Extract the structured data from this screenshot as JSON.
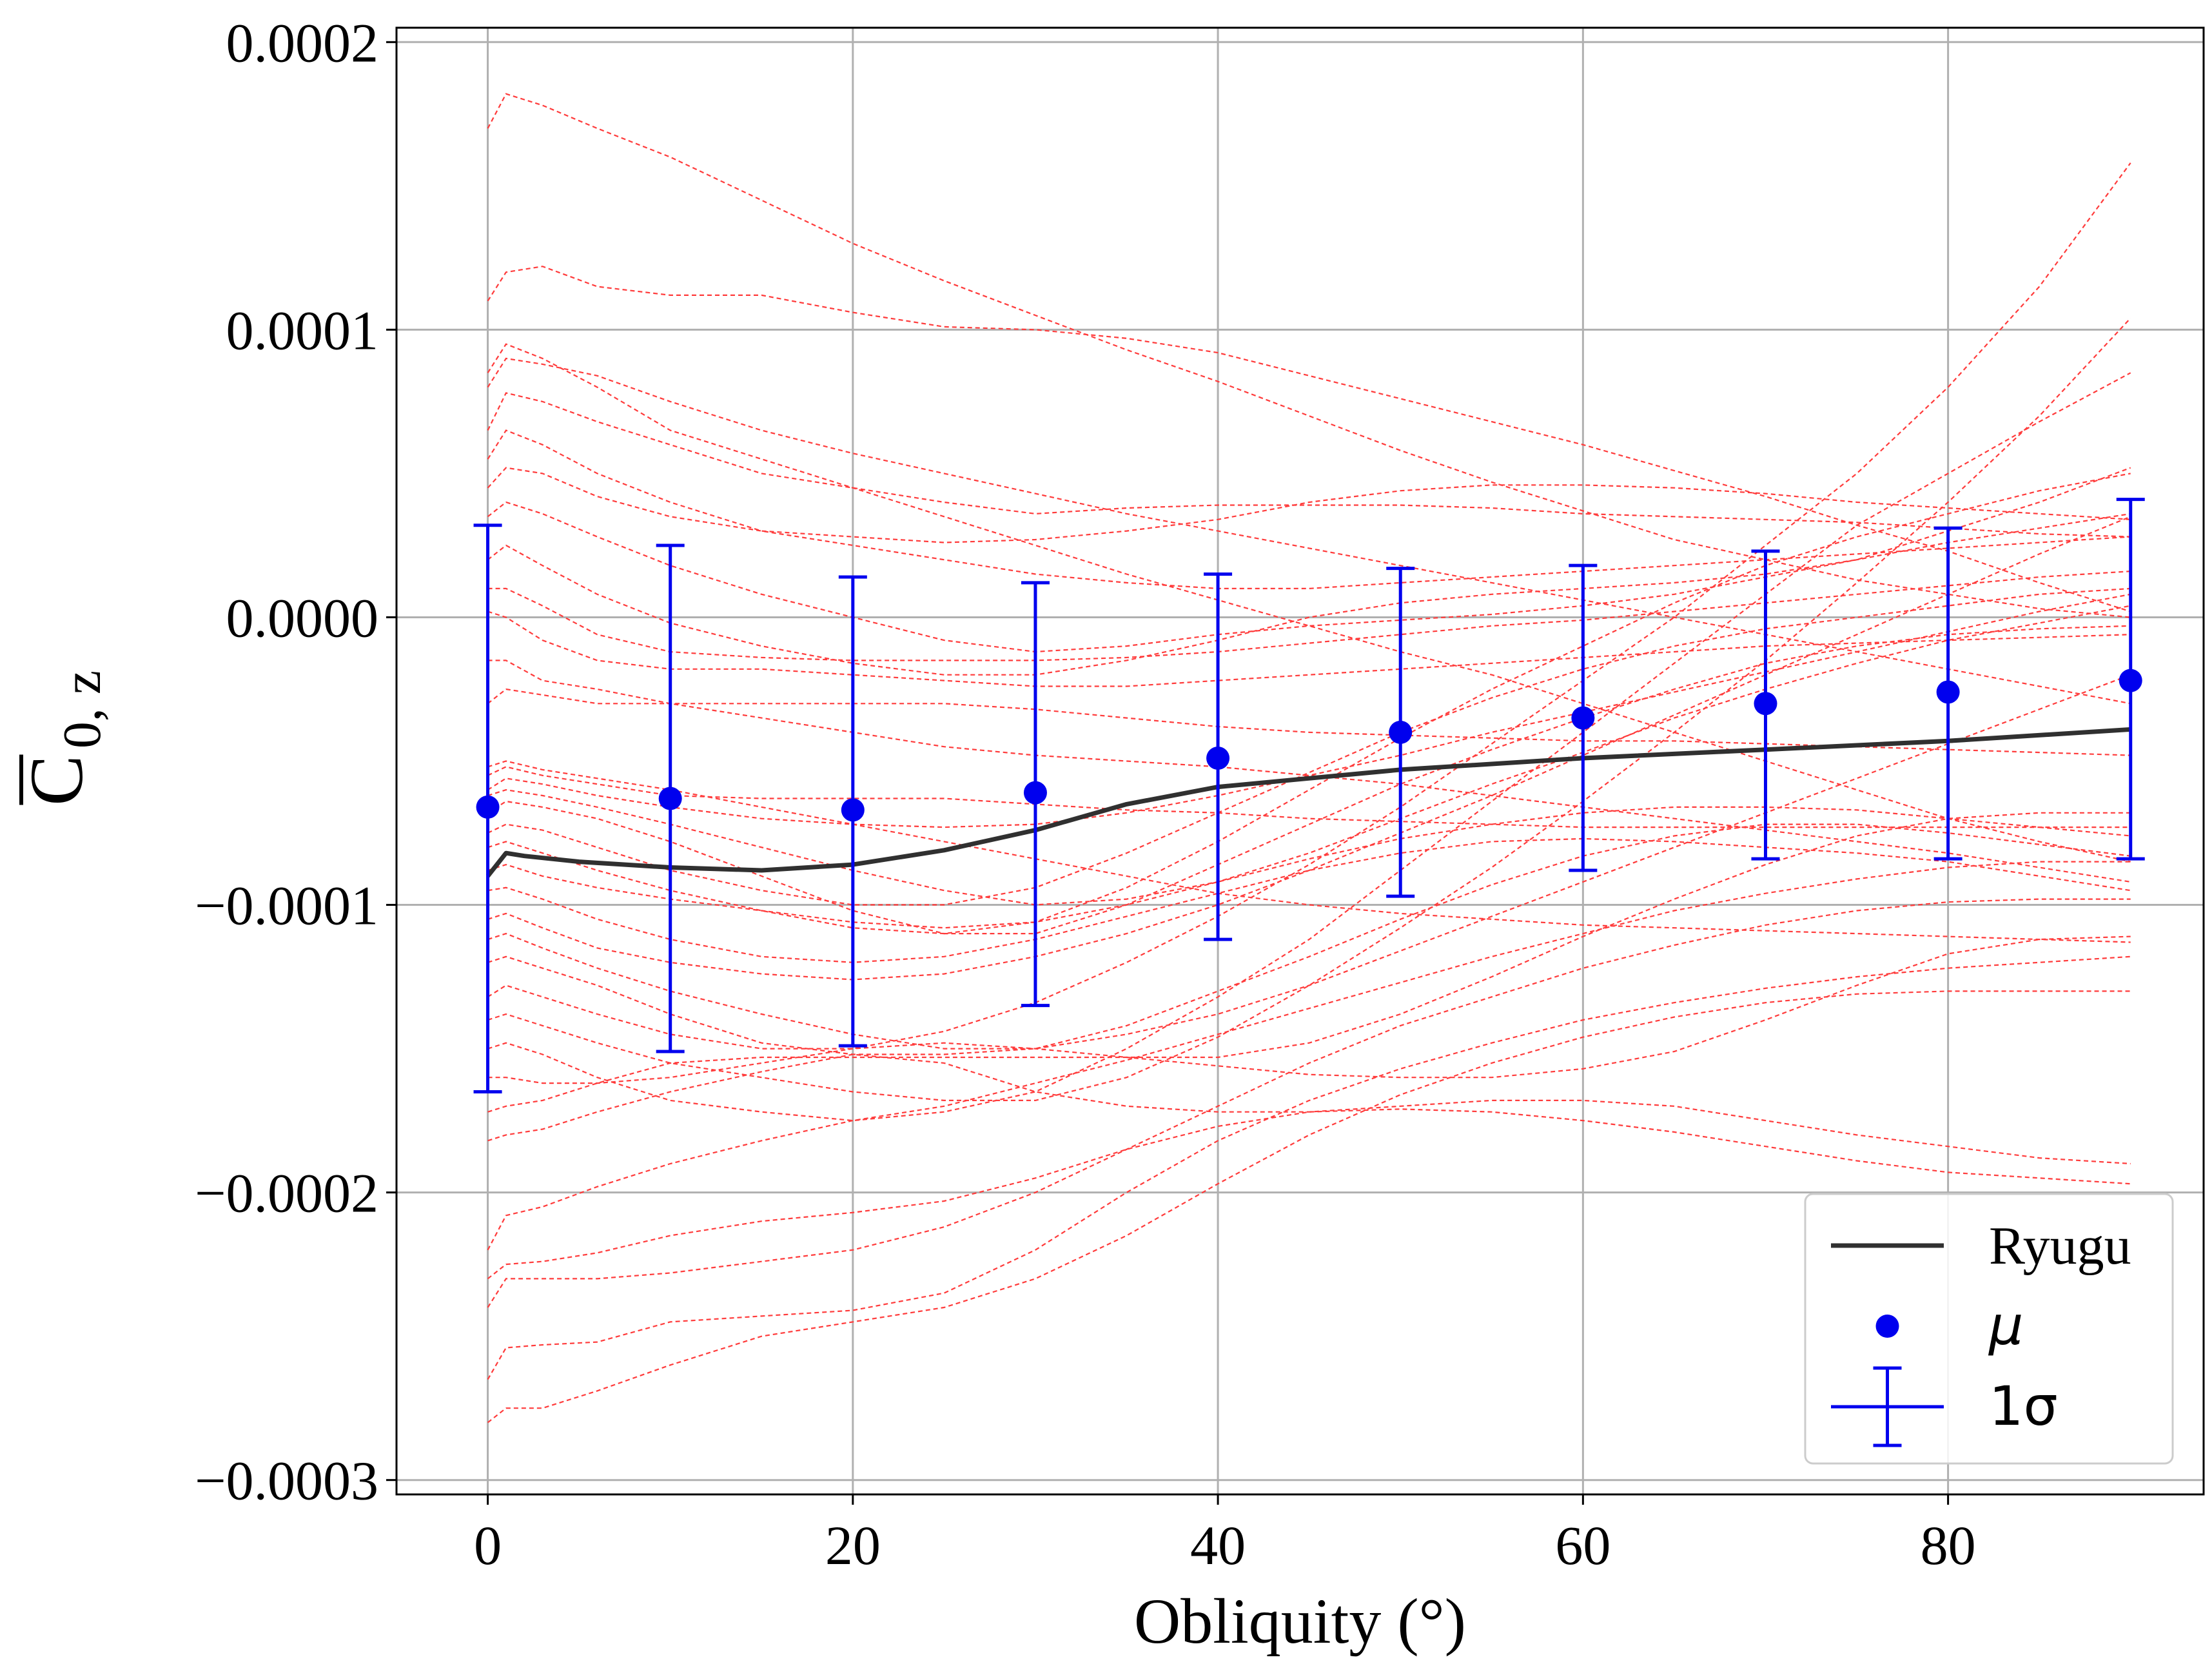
{
  "chart_data": {
    "type": "line",
    "xlabel": "Obliquity (°)",
    "ylabel": "C",
    "ylabel_subscript": "0, z",
    "xlim": [
      -5,
      94
    ],
    "ylim": [
      -0.000305,
      0.000205
    ],
    "x_ticks": [
      0,
      20,
      40,
      60,
      80
    ],
    "x_tick_labels": [
      "0",
      "20",
      "40",
      "60",
      "80"
    ],
    "y_ticks": [
      -0.0003,
      -0.0002,
      -0.0001,
      0.0,
      0.0001,
      0.0002
    ],
    "y_tick_labels": [
      "−0.0003",
      "−0.0002",
      "−0.0001",
      "0.0000",
      "0.0001",
      "0.0002"
    ],
    "grid": true,
    "legend_position": "lower-right",
    "legend": {
      "ryugu_label": "Ryugu",
      "mu_label": "μ",
      "sigma_label": "1σ"
    },
    "colors": {
      "ryugu": "#303030",
      "mean": "#0000ee",
      "samples": "#ff3b3b",
      "grid": "#b0b0b0"
    },
    "ryugu": {
      "x": [
        0,
        1,
        2,
        5,
        10,
        15,
        20,
        25,
        30,
        35,
        40,
        50,
        60,
        70,
        80,
        90
      ],
      "y": [
        -9e-05,
        -8.2e-05,
        -8.3e-05,
        -8.5e-05,
        -8.7e-05,
        -8.8e-05,
        -8.6e-05,
        -8.1e-05,
        -7.4e-05,
        -6.5e-05,
        -5.9e-05,
        -5.3e-05,
        -4.9e-05,
        -4.6e-05,
        -4.3e-05,
        -3.9e-05
      ]
    },
    "mean": {
      "x": [
        0,
        10,
        20,
        30,
        40,
        50,
        60,
        70,
        80,
        90
      ],
      "y": [
        -6.6e-05,
        -6.3e-05,
        -6.7e-05,
        -6.1e-05,
        -4.9e-05,
        -4e-05,
        -3.5e-05,
        -3e-05,
        -2.6e-05,
        -2.2e-05
      ],
      "lower": [
        -0.000165,
        -0.000151,
        -0.000149,
        -0.000135,
        -0.000112,
        -9.7e-05,
        -8.8e-05,
        -8.4e-05,
        -8.4e-05,
        -8.4e-05
      ],
      "upper": [
        3.2e-05,
        2.5e-05,
        1.4e-05,
        1.2e-05,
        1.5e-05,
        1.7e-05,
        1.8e-05,
        2.3e-05,
        3.1e-05,
        4.1e-05
      ]
    },
    "samples": {
      "x": [
        0,
        1,
        3,
        6,
        10,
        15,
        20,
        25,
        30,
        35,
        40,
        45,
        50,
        55,
        60,
        65,
        70,
        75,
        80,
        85,
        90
      ],
      "series": [
        [
          0.00017,
          0.000182,
          0.000178,
          0.00017,
          0.00016,
          0.000145,
          0.00013,
          0.000117,
          0.000105,
          9.3e-05,
          8.2e-05,
          7e-05,
          5.8e-05,
          4.7e-05,
          3.7e-05,
          2.7e-05,
          2e-05,
          1.3e-05,
          8e-06,
          3e-06,
          0.0
        ],
        [
          0.00011,
          0.00012,
          0.000122,
          0.000115,
          0.000112,
          0.000112,
          0.000106,
          0.000101,
          0.0001,
          9.7e-05,
          9.2e-05,
          8.4e-05,
          7.6e-05,
          6.8e-05,
          6e-05,
          5.1e-05,
          4.2e-05,
          3.2e-05,
          2.3e-05,
          1.2e-05,
          2e-06
        ],
        [
          8.5e-05,
          9.5e-05,
          9e-05,
          8e-05,
          6.5e-05,
          5.5e-05,
          4.5e-05,
          3.5e-05,
          2.5e-05,
          1.5e-05,
          6e-06,
          -3e-06,
          -1.2e-05,
          -2e-05,
          -3e-05,
          -4e-05,
          -5e-05,
          -6e-05,
          -7e-05,
          -7.8e-05,
          -8.5e-05
        ],
        [
          8e-05,
          9e-05,
          8.8e-05,
          8.4e-05,
          7.5e-05,
          6.5e-05,
          5.7e-05,
          5e-05,
          4.3e-05,
          3.6e-05,
          3e-05,
          2.4e-05,
          1.8e-05,
          1.2e-05,
          6e-06,
          0.0,
          -6e-06,
          -1.2e-05,
          -1.8e-05,
          -2.4e-05,
          -3e-05
        ],
        [
          6.5e-05,
          7.8e-05,
          7.5e-05,
          6.8e-05,
          6e-05,
          5e-05,
          4.5e-05,
          4e-05,
          3.6e-05,
          3.8e-05,
          3.9e-05,
          3.9e-05,
          3.9e-05,
          3.8e-05,
          3.6e-05,
          3.5e-05,
          3.4e-05,
          3.3e-05,
          3.1e-05,
          2.9e-05,
          2.8e-05
        ],
        [
          5.5e-05,
          6.5e-05,
          6e-05,
          5e-05,
          4e-05,
          3e-05,
          2.8e-05,
          2.6e-05,
          2.7e-05,
          3e-05,
          3.4e-05,
          4e-05,
          4.4e-05,
          4.6e-05,
          4.6e-05,
          4.5e-05,
          4.3e-05,
          4e-05,
          3.8e-05,
          3.6e-05,
          3.4e-05
        ],
        [
          4.5e-05,
          5.2e-05,
          5e-05,
          4.2e-05,
          3.5e-05,
          3e-05,
          2.5e-05,
          2e-05,
          1.5e-05,
          1.2e-05,
          1e-05,
          1e-05,
          1.2e-05,
          1.4e-05,
          1.6e-05,
          1.8e-05,
          2e-05,
          2.2e-05,
          2.4e-05,
          2.6e-05,
          2.8e-05
        ],
        [
          3.5e-05,
          4e-05,
          3.6e-05,
          2.8e-05,
          1.8e-05,
          8e-06,
          0.0,
          -8e-06,
          -1.2e-05,
          -1e-05,
          -6e-06,
          -3e-06,
          -1e-06,
          1e-06,
          4e-06,
          8e-06,
          1.4e-05,
          2e-05,
          2.6e-05,
          3.1e-05,
          3.6e-05
        ],
        [
          2e-05,
          2.5e-05,
          1.8e-05,
          8e-06,
          -2e-06,
          -1e-05,
          -1.6e-05,
          -2e-05,
          -2e-05,
          -1.5e-05,
          -8e-06,
          0.0,
          5e-06,
          8e-06,
          1e-05,
          1.2e-05,
          1.5e-05,
          2e-05,
          3e-05,
          4e-05,
          5.2e-05
        ],
        [
          1e-05,
          1e-05,
          4e-06,
          -6e-06,
          -1.2e-05,
          -1.4e-05,
          -1.5e-05,
          -1.5e-05,
          -1.5e-05,
          -1.4e-05,
          -1.2e-05,
          -9e-06,
          -6e-06,
          -3e-06,
          -1e-06,
          2e-06,
          5e-06,
          8e-06,
          1.1e-05,
          1.4e-05,
          1.6e-05
        ],
        [
          2e-06,
          0.0,
          -8e-06,
          -1.5e-05,
          -1.8e-05,
          -1.8e-05,
          -2e-05,
          -2.2e-05,
          -2.4e-05,
          -2.4e-05,
          -2.2e-05,
          -2e-05,
          -1.8e-05,
          -1.6e-05,
          -1.4e-05,
          -1.2e-05,
          -1e-05,
          -9e-06,
          -8e-06,
          -7e-06,
          -6e-06
        ],
        [
          -1.5e-05,
          -1.5e-05,
          -2.2e-05,
          -2.5e-05,
          -3e-05,
          -3.5e-05,
          -4e-05,
          -4.5e-05,
          -4.8e-05,
          -5e-05,
          -5.2e-05,
          -5.5e-05,
          -5.8e-05,
          -6.2e-05,
          -6.6e-05,
          -7e-05,
          -7.4e-05,
          -7.8e-05,
          -8.2e-05,
          -8.7e-05,
          -9.2e-05
        ],
        [
          -3e-05,
          -2.5e-05,
          -2.7e-05,
          -3e-05,
          -3e-05,
          -3e-05,
          -3e-05,
          -3e-05,
          -3.2e-05,
          -3.5e-05,
          -3.8e-05,
          -4e-05,
          -4.1e-05,
          -4.2e-05,
          -4.3e-05,
          -4.3e-05,
          -4.4e-05,
          -4.5e-05,
          -4.6e-05,
          -4.7e-05,
          -4.8e-05
        ],
        [
          -5.2e-05,
          -5e-05,
          -5.3e-05,
          -5.6e-05,
          -6e-05,
          -6.6e-05,
          -7.2e-05,
          -7.8e-05,
          -8.4e-05,
          -9e-05,
          -9.6e-05,
          -0.0001,
          -0.000103,
          -0.000105,
          -0.000107,
          -0.000108,
          -0.000109,
          -0.00011,
          -0.000111,
          -0.000112,
          -0.000113
        ],
        [
          -5.5e-05,
          -5.2e-05,
          -5.5e-05,
          -5.8e-05,
          -6.2e-05,
          -6.3e-05,
          -6.3e-05,
          -6.3e-05,
          -6.5e-05,
          -6.7e-05,
          -6.8e-05,
          -7e-05,
          -7.1e-05,
          -7.2e-05,
          -7.3e-05,
          -7.3e-05,
          -7.3e-05,
          -7.3e-05,
          -7.3e-05,
          -7.3e-05,
          -7.3e-05
        ],
        [
          -6e-05,
          -5.6e-05,
          -5.8e-05,
          -6.2e-05,
          -6.6e-05,
          -7e-05,
          -7.2e-05,
          -7.3e-05,
          -7.2e-05,
          -6.8e-05,
          -6.2e-05,
          -5.5e-05,
          -4.8e-05,
          -4e-05,
          -3.3e-05,
          -2.6e-05,
          -1.9e-05,
          -1.2e-05,
          -5e-06,
          2e-06,
          8e-06
        ],
        [
          -6.2e-05,
          -6e-05,
          -6.2e-05,
          -6.6e-05,
          -7.2e-05,
          -8e-05,
          -8.8e-05,
          -9.5e-05,
          -0.0001,
          -9.8e-05,
          -9.2e-05,
          -8.2e-05,
          -7e-05,
          -5.8e-05,
          -4.7e-05,
          -3.5e-05,
          -2.5e-05,
          -1.6e-05,
          -8e-06,
          -2e-06,
          4e-06
        ],
        [
          -6.8e-05,
          -6.4e-05,
          -6.6e-05,
          -7e-05,
          -7.8e-05,
          -9e-05,
          -0.000102,
          -0.00011,
          -0.00011,
          -0.0001,
          -8.6e-05,
          -7.2e-05,
          -5.8e-05,
          -4.6e-05,
          -3.5e-05,
          -2.5e-05,
          -1.6e-05,
          -1e-05,
          -6e-06,
          -4e-06,
          -3e-06
        ],
        [
          -7.5e-05,
          -7.2e-05,
          -7.4e-05,
          -8e-05,
          -8.8e-05,
          -9.5e-05,
          -0.0001,
          -0.0001,
          -9.4e-05,
          -8.2e-05,
          -6.8e-05,
          -5.4e-05,
          -4e-05,
          -2.8e-05,
          -1.8e-05,
          -1e-05,
          -4e-06,
          0.0,
          4e-06,
          8e-06,
          1e-05
        ],
        [
          -8e-05,
          -7.8e-05,
          -8.2e-05,
          -8.8e-05,
          -9.5e-05,
          -0.000102,
          -0.000108,
          -0.00011,
          -0.000106,
          -9.4e-05,
          -7.8e-05,
          -6e-05,
          -4.2e-05,
          -2.5e-05,
          -1e-05,
          5e-06,
          1.8e-05,
          2.8e-05,
          3.6e-05,
          4.4e-05,
          5e-05
        ],
        [
          -8.8e-05,
          -8.6e-05,
          -9e-05,
          -9.4e-05,
          -9.8e-05,
          -0.000102,
          -0.000106,
          -0.000108,
          -0.000106,
          -0.0001,
          -9.2e-05,
          -8.4e-05,
          -7.7e-05,
          -7.2e-05,
          -6.8e-05,
          -6.6e-05,
          -6.6e-05,
          -6.7e-05,
          -7e-05,
          -7.3e-05,
          -7.6e-05
        ],
        [
          -9.5e-05,
          -9.4e-05,
          -9.8e-05,
          -0.000105,
          -0.000112,
          -0.000118,
          -0.00012,
          -0.000118,
          -0.000112,
          -0.000104,
          -9.6e-05,
          -8.8e-05,
          -8.2e-05,
          -7.8e-05,
          -7.7e-05,
          -7.8e-05,
          -8e-05,
          -8.2e-05,
          -8.5e-05,
          -9e-05,
          -9.5e-05
        ],
        [
          -0.000105,
          -0.000103,
          -0.000108,
          -0.000115,
          -0.00012,
          -0.000124,
          -0.000126,
          -0.000124,
          -0.000118,
          -0.00011,
          -0.0001,
          -8.8e-05,
          -7.5e-05,
          -6.2e-05,
          -4.8e-05,
          -3.4e-05,
          -2e-05,
          -6e-06,
          8e-06,
          2.2e-05,
          3.5e-05
        ],
        [
          -0.000112,
          -0.00011,
          -0.000115,
          -0.000122,
          -0.00013,
          -0.000138,
          -0.000145,
          -0.00015,
          -0.00015,
          -0.000142,
          -0.00013,
          -0.000118,
          -0.000105,
          -9.3e-05,
          -8.3e-05,
          -7.6e-05,
          -7.2e-05,
          -7.2e-05,
          -7.5e-05,
          -7.9e-05,
          -8.3e-05
        ],
        [
          -0.00012,
          -0.000118,
          -0.000122,
          -0.000128,
          -0.000138,
          -0.000148,
          -0.000152,
          -0.000152,
          -0.00015,
          -0.000145,
          -0.000138,
          -0.000128,
          -0.000116,
          -0.000104,
          -9.2e-05,
          -8e-05,
          -6.8e-05,
          -5.6e-05,
          -4.4e-05,
          -3.2e-05,
          -2e-05
        ],
        [
          -0.000132,
          -0.000128,
          -0.000132,
          -0.000138,
          -0.000145,
          -0.00015,
          -0.00015,
          -0.000144,
          -0.000134,
          -0.00012,
          -0.000104,
          -8.6e-05,
          -6.6e-05,
          -4.4e-05,
          -2.2e-05,
          0.0,
          2.5e-05,
          5e-05,
          8e-05,
          0.000115,
          0.000158
        ],
        [
          -0.00014,
          -0.000138,
          -0.000142,
          -0.000148,
          -0.000155,
          -0.00016,
          -0.000165,
          -0.000168,
          -0.000168,
          -0.00016,
          -0.000146,
          -0.000128,
          -0.000108,
          -8.7e-05,
          -6.4e-05,
          -4e-05,
          -1.5e-05,
          1.2e-05,
          4e-05,
          7e-05,
          0.000104
        ],
        [
          -0.00015,
          -0.000148,
          -0.000152,
          -0.00016,
          -0.000168,
          -0.000172,
          -0.000175,
          -0.000172,
          -0.000165,
          -0.00015,
          -0.000132,
          -0.000112,
          -8.8e-05,
          -6.4e-05,
          -4e-05,
          -1.6e-05,
          8e-06,
          3.2e-05,
          5e-05,
          6.8e-05,
          8.5e-05
        ],
        [
          -0.00016,
          -0.00016,
          -0.000162,
          -0.000162,
          -0.00016,
          -0.000155,
          -0.00015,
          -0.000148,
          -0.00015,
          -0.000153,
          -0.000156,
          -0.000159,
          -0.00016,
          -0.00016,
          -0.000157,
          -0.000151,
          -0.00014,
          -0.000128,
          -0.000117,
          -0.000112,
          -0.000111
        ],
        [
          -0.000172,
          -0.00017,
          -0.000168,
          -0.000162,
          -0.000155,
          -0.000153,
          -0.000153,
          -0.000153,
          -0.000153,
          -0.000153,
          -0.000153,
          -0.000148,
          -0.000138,
          -0.000125,
          -0.000111,
          -9.8e-05,
          -8.6e-05,
          -7.6e-05,
          -7e-05,
          -6.8e-05,
          -6.8e-05
        ],
        [
          -0.000182,
          -0.00018,
          -0.000178,
          -0.000172,
          -0.000165,
          -0.000158,
          -0.000152,
          -0.000155,
          -0.000165,
          -0.00017,
          -0.000172,
          -0.000172,
          -0.00017,
          -0.000168,
          -0.000168,
          -0.00017,
          -0.000175,
          -0.00018,
          -0.000184,
          -0.000188,
          -0.00019
        ],
        [
          -0.00022,
          -0.000208,
          -0.000205,
          -0.000198,
          -0.00019,
          -0.000182,
          -0.000175,
          -0.00017,
          -0.000162,
          -0.000154,
          -0.000145,
          -0.000136,
          -0.000127,
          -0.000118,
          -0.00011,
          -0.000102,
          -9.6e-05,
          -9.1e-05,
          -8.7e-05,
          -8.5e-05,
          -8.5e-05
        ],
        [
          -0.00023,
          -0.000225,
          -0.000224,
          -0.000221,
          -0.000215,
          -0.00021,
          -0.000207,
          -0.000203,
          -0.000195,
          -0.000185,
          -0.000177,
          -0.000172,
          -0.000171,
          -0.000172,
          -0.000175,
          -0.000179,
          -0.000184,
          -0.000189,
          -0.000193,
          -0.000195,
          -0.000197
        ],
        [
          -0.00024,
          -0.00023,
          -0.00023,
          -0.00023,
          -0.000228,
          -0.000224,
          -0.00022,
          -0.000212,
          -0.0002,
          -0.000185,
          -0.00017,
          -0.000155,
          -0.000142,
          -0.000132,
          -0.000122,
          -0.000114,
          -0.000107,
          -0.000102,
          -9.9e-05,
          -9.8e-05,
          -9.8e-05
        ],
        [
          -0.000265,
          -0.000254,
          -0.000253,
          -0.000252,
          -0.000245,
          -0.000243,
          -0.000241,
          -0.000235,
          -0.00022,
          -0.0002,
          -0.000182,
          -0.000168,
          -0.000157,
          -0.000148,
          -0.00014,
          -0.000134,
          -0.000129,
          -0.000125,
          -0.000122,
          -0.00012,
          -0.000118
        ],
        [
          -0.00028,
          -0.000275,
          -0.000275,
          -0.000269,
          -0.00026,
          -0.00025,
          -0.000245,
          -0.00024,
          -0.00023,
          -0.000215,
          -0.000197,
          -0.00018,
          -0.000166,
          -0.000155,
          -0.000146,
          -0.000139,
          -0.000134,
          -0.000131,
          -0.00013,
          -0.00013,
          -0.00013
        ]
      ]
    }
  }
}
